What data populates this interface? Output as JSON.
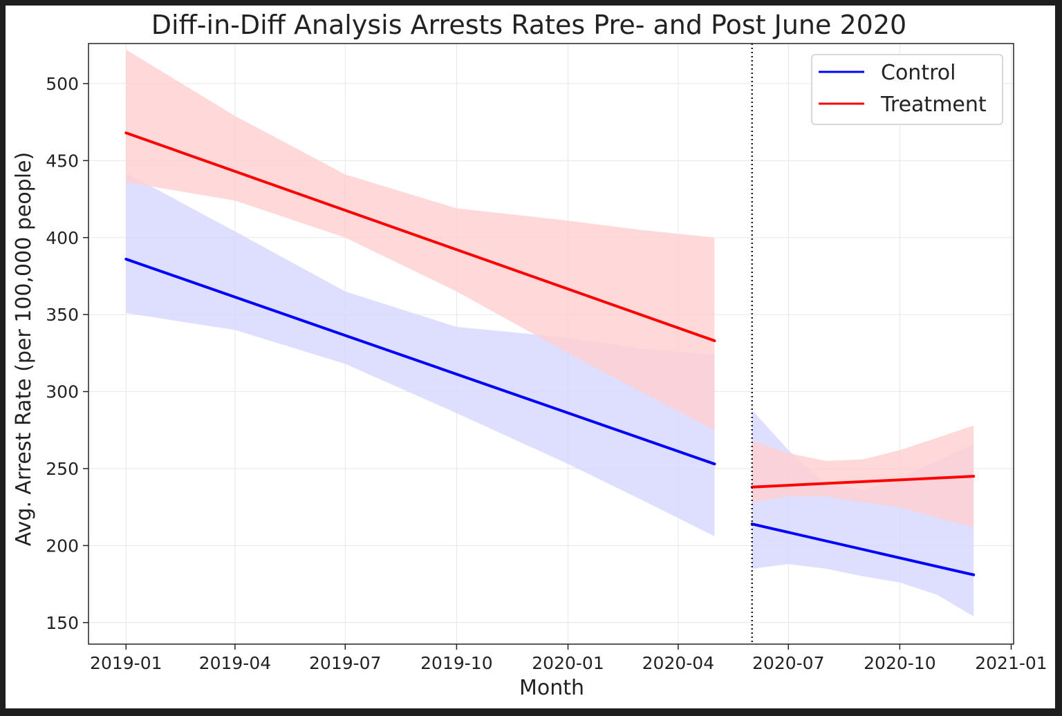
{
  "chart_data": {
    "type": "line",
    "title": "Diff-in-Diff Analysis Arrests Rates Pre- and Post June 2020",
    "xlabel": "Month",
    "ylabel": "Avg. Arrest Rate (per 100,000 people)",
    "x_ticks": [
      "2019-01",
      "2019-04",
      "2019-07",
      "2019-10",
      "2020-01",
      "2020-04",
      "2020-07",
      "2020-10",
      "2021-01"
    ],
    "y_ticks": [
      150,
      200,
      250,
      300,
      350,
      400,
      450,
      500
    ],
    "xlim": [
      "2018-12-01",
      "2021-01-03"
    ],
    "ylim": [
      136,
      526
    ],
    "grid": true,
    "legend_position": "top-right",
    "event_date": "2020-06-01",
    "series": [
      {
        "name": "Control",
        "color": "#0000ff",
        "band_color": "#d6d6ff",
        "segments": [
          {
            "x": [
              "2019-01-01",
              "2020-05-01"
            ],
            "y": [
              386,
              253
            ],
            "ci_x": [
              "2019-01-01",
              "2019-04-01",
              "2019-07-01",
              "2019-10-01",
              "2020-01-01",
              "2020-03-01",
              "2020-05-01"
            ],
            "ci_lower": [
              351,
              340,
              318,
              286,
              253,
              230,
              206
            ],
            "ci_upper": [
              442,
              404,
              365,
              342,
              335,
              328,
              324
            ]
          },
          {
            "x": [
              "2020-06-01",
              "2020-12-01"
            ],
            "y": [
              214,
              181
            ],
            "ci_x": [
              "2020-06-01",
              "2020-07-01",
              "2020-08-01",
              "2020-09-01",
              "2020-10-01",
              "2020-11-01",
              "2020-12-01"
            ],
            "ci_lower": [
              185,
              188,
              185,
              180,
              176,
              168,
              154
            ],
            "ci_upper": [
              288,
              262,
              240,
              236,
              244,
              255,
              266
            ]
          }
        ]
      },
      {
        "name": "Treatment",
        "color": "#ff0000",
        "band_color": "#ffd0d0",
        "segments": [
          {
            "x": [
              "2019-01-01",
              "2020-05-01"
            ],
            "y": [
              468,
              333
            ],
            "ci_x": [
              "2019-01-01",
              "2019-04-01",
              "2019-07-01",
              "2019-10-01",
              "2020-01-01",
              "2020-03-01",
              "2020-05-01"
            ],
            "ci_lower": [
              436,
              424,
              400,
              365,
              325,
              300,
              275
            ],
            "ci_upper": [
              522,
              479,
              441,
              419,
              411,
              405,
              400
            ]
          },
          {
            "x": [
              "2020-06-01",
              "2020-12-01"
            ],
            "y": [
              238,
              245
            ],
            "ci_x": [
              "2020-06-01",
              "2020-07-01",
              "2020-08-01",
              "2020-09-01",
              "2020-10-01",
              "2020-11-01",
              "2020-12-01"
            ],
            "ci_lower": [
              228,
              232,
              232,
              228,
              225,
              218,
              212
            ],
            "ci_upper": [
              268,
              260,
              255,
              256,
              262,
              270,
              278
            ]
          }
        ]
      }
    ]
  }
}
